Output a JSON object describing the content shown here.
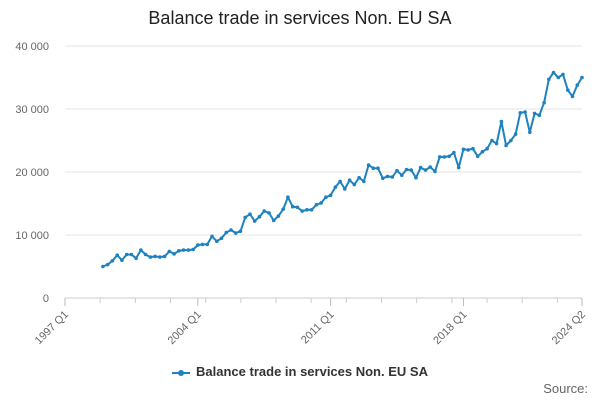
{
  "chart_data": {
    "type": "line",
    "title": "Balance trade in services Non. EU SA",
    "xlabel": "",
    "ylabel": "",
    "ylim": [
      0,
      40000
    ],
    "y_ticks": [
      "0",
      "10 000",
      "20 000",
      "30 000",
      "40 000"
    ],
    "y_tick_values": [
      0,
      10000,
      20000,
      30000,
      40000
    ],
    "x_ticks": [
      "1997 Q1",
      "2004 Q1",
      "2011 Q1",
      "2018 Q1",
      "2024 Q2"
    ],
    "x_tick_values": [
      1997.0,
      2004.0,
      2011.0,
      2018.0,
      2024.25
    ],
    "grid": true,
    "legend_position": "bottom",
    "series": [
      {
        "name": "Balance trade in services Non. EU SA",
        "color": "#1f82c0",
        "x": [
          1999.0,
          1999.25,
          1999.5,
          1999.75,
          2000.0,
          2000.25,
          2000.5,
          2000.75,
          2001.0,
          2001.25,
          2001.5,
          2001.75,
          2002.0,
          2002.25,
          2002.5,
          2002.75,
          2003.0,
          2003.25,
          2003.5,
          2003.75,
          2004.0,
          2004.25,
          2004.5,
          2004.75,
          2005.0,
          2005.25,
          2005.5,
          2005.75,
          2006.0,
          2006.25,
          2006.5,
          2006.75,
          2007.0,
          2007.25,
          2007.5,
          2007.75,
          2008.0,
          2008.25,
          2008.5,
          2008.75,
          2009.0,
          2009.25,
          2009.5,
          2009.75,
          2010.0,
          2010.25,
          2010.5,
          2010.75,
          2011.0,
          2011.25,
          2011.5,
          2011.75,
          2012.0,
          2012.25,
          2012.5,
          2012.75,
          2013.0,
          2013.25,
          2013.5,
          2013.75,
          2014.0,
          2014.25,
          2014.5,
          2014.75,
          2015.0,
          2015.25,
          2015.5,
          2015.75,
          2016.0,
          2016.25,
          2016.5,
          2016.75,
          2017.0,
          2017.25,
          2017.5,
          2017.75,
          2018.0,
          2018.25,
          2018.5,
          2018.75,
          2019.0,
          2019.25,
          2019.5,
          2019.75,
          2020.0,
          2020.25,
          2020.5,
          2020.75,
          2021.0,
          2021.25,
          2021.5,
          2021.75,
          2022.0,
          2022.25,
          2022.5,
          2022.75,
          2023.0,
          2023.25,
          2023.5,
          2023.75,
          2024.0,
          2024.25
        ],
        "values": [
          5000,
          5300,
          5900,
          6800,
          6000,
          6900,
          6900,
          6300,
          7600,
          6900,
          6500,
          6600,
          6500,
          6600,
          7400,
          7000,
          7500,
          7600,
          7600,
          7700,
          8400,
          8500,
          8500,
          9800,
          9000,
          9500,
          10400,
          10800,
          10300,
          10600,
          12800,
          13300,
          12200,
          12900,
          13800,
          13500,
          12300,
          13000,
          14100,
          16000,
          14500,
          14400,
          13800,
          14000,
          14000,
          14800,
          15100,
          16000,
          16300,
          17600,
          18500,
          17300,
          18700,
          18000,
          19100,
          18500,
          21100,
          20600,
          20600,
          19000,
          19300,
          19200,
          20200,
          19500,
          20400,
          20300,
          19100,
          20700,
          20300,
          20800,
          20100,
          22400,
          22400,
          22500,
          23100,
          20700,
          23600,
          23500,
          23700,
          22500,
          23200,
          23700,
          25000,
          24500,
          28000,
          24200,
          25000,
          26000,
          29400,
          29500,
          26300,
          29300,
          29000,
          31000,
          34700,
          35800,
          35000,
          35500,
          33000,
          32000,
          33800,
          35000
        ]
      }
    ]
  },
  "source_label": "Source:"
}
